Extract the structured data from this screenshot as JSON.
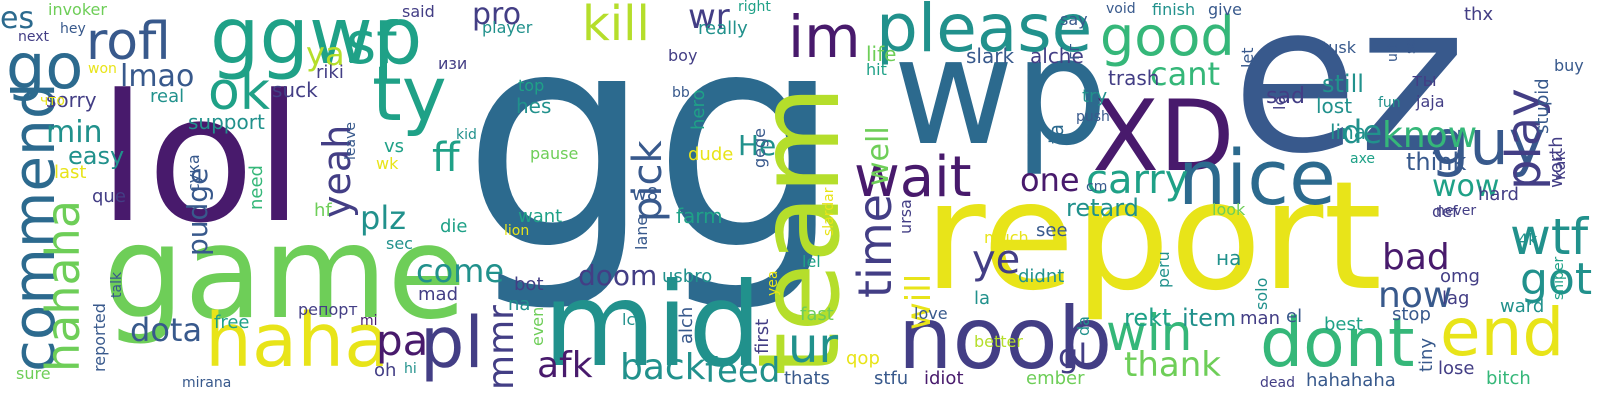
{
  "palette": {
    "purple": "#481a6c",
    "indigo": "#433e85",
    "slate": "#38598c",
    "blue": "#2c6a8e",
    "teal": "#21918c",
    "sea": "#1fa187",
    "green": "#35b779",
    "lime": "#6ece58",
    "yellowgreen": "#b5de2b",
    "yellow": "#e8e419"
  },
  "words": [
    {
      "text": "gg",
      "color": "blue"
    },
    {
      "text": "ez",
      "color": "slate"
    },
    {
      "text": "lol",
      "color": "purple"
    },
    {
      "text": "report",
      "color": "yellow"
    },
    {
      "text": "wp",
      "color": "blue"
    },
    {
      "text": "game",
      "color": "lime"
    },
    {
      "text": "team",
      "color": "yellowgreen"
    },
    {
      "text": "mid",
      "color": "teal"
    },
    {
      "text": "XD",
      "color": "purple"
    },
    {
      "text": "noob",
      "color": "indigo"
    },
    {
      "text": "nice",
      "color": "blue"
    },
    {
      "text": "haha",
      "color": "yellow"
    },
    {
      "text": "please",
      "color": "teal"
    },
    {
      "text": "ggwp",
      "color": "sea"
    },
    {
      "text": "dont",
      "color": "green"
    },
    {
      "text": "end",
      "color": "yellow"
    },
    {
      "text": "commend",
      "color": "blue"
    },
    {
      "text": "ty",
      "color": "sea"
    },
    {
      "text": "good",
      "color": "green"
    },
    {
      "text": "guy",
      "color": "slate"
    },
    {
      "text": "win",
      "color": "green"
    },
    {
      "text": "wait",
      "color": "purple"
    },
    {
      "text": "time",
      "color": "indigo"
    },
    {
      "text": "im",
      "color": "purple"
    },
    {
      "text": "sf",
      "color": "sea"
    },
    {
      "text": "pl",
      "color": "indigo"
    },
    {
      "text": "kill",
      "color": "yellowgreen"
    },
    {
      "text": "go",
      "color": "blue"
    },
    {
      "text": "ok",
      "color": "sea"
    },
    {
      "text": "rofl",
      "color": "slate"
    },
    {
      "text": "hahaha",
      "color": "lime"
    },
    {
      "text": "play",
      "color": "indigo"
    },
    {
      "text": "ur",
      "color": "teal"
    },
    {
      "text": "back",
      "color": "teal"
    },
    {
      "text": "wtf",
      "color": "teal"
    },
    {
      "text": "pick",
      "color": "slate"
    },
    {
      "text": "got",
      "color": "teal"
    },
    {
      "text": "feed",
      "color": "teal"
    },
    {
      "text": "pa",
      "color": "purple"
    },
    {
      "text": "carry",
      "color": "sea"
    },
    {
      "text": "know",
      "color": "green"
    },
    {
      "text": "now",
      "color": "slate"
    },
    {
      "text": "mmr",
      "color": "indigo"
    },
    {
      "text": "yeah",
      "color": "indigo"
    },
    {
      "text": "ye",
      "color": "indigo"
    },
    {
      "text": "ff",
      "color": "sea"
    },
    {
      "text": "bad",
      "color": "purple"
    },
    {
      "text": "well",
      "color": "lime"
    },
    {
      "text": "will",
      "color": "yellow"
    },
    {
      "text": "wow",
      "color": "sea"
    },
    {
      "text": "afk",
      "color": "purple"
    },
    {
      "text": "come",
      "color": "teal"
    },
    {
      "text": "cant",
      "color": "green"
    },
    {
      "text": "gl",
      "color": "indigo"
    },
    {
      "text": "one",
      "color": "purple"
    },
    {
      "text": "dota",
      "color": "slate"
    },
    {
      "text": "plz",
      "color": "teal"
    },
    {
      "text": "pudge",
      "color": "slate"
    },
    {
      "text": "thank",
      "color": "lime"
    },
    {
      "text": "min",
      "color": "teal"
    },
    {
      "text": "lmao",
      "color": "slate"
    },
    {
      "text": "ya",
      "color": "yellowgreen"
    },
    {
      "text": "pro",
      "color": "indigo"
    },
    {
      "text": "wr",
      "color": "indigo"
    },
    {
      "text": "es",
      "color": "blue"
    },
    {
      "text": "de",
      "color": "teal"
    },
    {
      "text": "easy",
      "color": "teal"
    },
    {
      "text": "doom",
      "color": "indigo"
    },
    {
      "text": "Не",
      "color": "teal"
    },
    {
      "text": "retard",
      "color": "teal"
    },
    {
      "text": "rekt",
      "color": "sea"
    },
    {
      "text": "item",
      "color": "teal"
    },
    {
      "text": "still",
      "color": "teal"
    },
    {
      "text": "think",
      "color": "slate"
    },
    {
      "text": "slark",
      "color": "slate"
    },
    {
      "text": "alche",
      "color": "indigo"
    },
    {
      "text": "trash",
      "color": "indigo"
    },
    {
      "text": "lost",
      "color": "teal"
    },
    {
      "text": "lina",
      "color": "teal"
    },
    {
      "text": "sad",
      "color": "indigo"
    },
    {
      "text": "ta",
      "color": "blue"
    },
    {
      "text": "try",
      "color": "teal"
    },
    {
      "text": "life",
      "color": "lime"
    },
    {
      "text": "hit",
      "color": "sea"
    },
    {
      "text": "support",
      "color": "teal"
    },
    {
      "text": "suck",
      "color": "indigo"
    },
    {
      "text": "riki",
      "color": "indigo"
    },
    {
      "text": "sorry",
      "color": "indigo"
    },
    {
      "text": "real",
      "color": "teal"
    },
    {
      "text": "top",
      "color": "sea"
    },
    {
      "text": "hes",
      "color": "teal"
    },
    {
      "text": "hero",
      "color": "sea"
    },
    {
      "text": "bb",
      "color": "slate"
    },
    {
      "text": "pause",
      "color": "lime"
    },
    {
      "text": "dude",
      "color": "yellow"
    },
    {
      "text": "gege",
      "color": "slate"
    },
    {
      "text": "want",
      "color": "sea"
    },
    {
      "text": "farm",
      "color": "sea"
    },
    {
      "text": "lane",
      "color": "slate"
    },
    {
      "text": "w8",
      "color": "slate"
    },
    {
      "text": "usbro",
      "color": "teal"
    },
    {
      "text": "bot",
      "color": "indigo"
    },
    {
      "text": "na",
      "color": "teal"
    },
    {
      "text": "even",
      "color": "lime"
    },
    {
      "text": "alch",
      "color": "slate"
    },
    {
      "text": "lc",
      "color": "teal"
    },
    {
      "text": "first",
      "color": "indigo"
    },
    {
      "text": "thats",
      "color": "slate"
    },
    {
      "text": "qop",
      "color": "yellow"
    },
    {
      "text": "stfu",
      "color": "slate"
    },
    {
      "text": "idiot",
      "color": "purple"
    },
    {
      "text": "ember",
      "color": "lime"
    },
    {
      "text": "fast",
      "color": "lime"
    },
    {
      "text": "lel",
      "color": "sea"
    },
    {
      "text": "la",
      "color": "teal"
    },
    {
      "text": "didnt",
      "color": "teal"
    },
    {
      "text": "see",
      "color": "slate"
    },
    {
      "text": "much",
      "color": "yellow"
    },
    {
      "text": "love",
      "color": "slate"
    },
    {
      "text": "better",
      "color": "yellowgreen"
    },
    {
      "text": "da",
      "color": "teal"
    },
    {
      "text": "peru",
      "color": "teal"
    },
    {
      "text": "на",
      "color": "teal"
    },
    {
      "text": "solo",
      "color": "teal"
    },
    {
      "text": "lo",
      "color": "indigo"
    },
    {
      "text": "man",
      "color": "indigo"
    },
    {
      "text": "el",
      "color": "slate"
    },
    {
      "text": "best",
      "color": "sea"
    },
    {
      "text": "stop",
      "color": "slate"
    },
    {
      "text": "omg",
      "color": "indigo"
    },
    {
      "text": "lag",
      "color": "indigo"
    },
    {
      "text": "tiny",
      "color": "slate"
    },
    {
      "text": "dead",
      "color": "indigo"
    },
    {
      "text": "hahahaha",
      "color": "slate"
    },
    {
      "text": "lose",
      "color": "indigo"
    },
    {
      "text": "bitch",
      "color": "green"
    },
    {
      "text": "ward",
      "color": "teal"
    },
    {
      "text": "4k",
      "color": "teal"
    },
    {
      "text": "hard",
      "color": "indigo"
    },
    {
      "text": "def",
      "color": "indigo"
    },
    {
      "text": "never",
      "color": "indigo"
    },
    {
      "text": "look",
      "color": "lime"
    },
    {
      "text": "sniper",
      "color": "sea"
    },
    {
      "text": "worth",
      "color": "indigo"
    },
    {
      "text": "как",
      "color": "indigo"
    },
    {
      "text": "stupid",
      "color": "slate"
    },
    {
      "text": "jaja",
      "color": "indigo"
    },
    {
      "text": "fun",
      "color": "teal"
    },
    {
      "text": "ты",
      "color": "indigo"
    },
    {
      "text": "buy",
      "color": "slate"
    },
    {
      "text": "thx",
      "color": "indigo"
    },
    {
      "text": "ult",
      "color": "slate"
    },
    {
      "text": "se",
      "color": "slate"
    },
    {
      "text": "tusk",
      "color": "slate"
    },
    {
      "text": "void",
      "color": "slate"
    },
    {
      "text": "finish",
      "color": "teal"
    },
    {
      "text": "give",
      "color": "slate"
    },
    {
      "text": "say",
      "color": "slate"
    },
    {
      "text": "let",
      "color": "slate"
    },
    {
      "text": "гг",
      "color": "slate"
    },
    {
      "text": "push",
      "color": "slate"
    },
    {
      "text": "ursa",
      "color": "indigo"
    },
    {
      "text": "cm",
      "color": "slate"
    },
    {
      "text": "axe",
      "color": "sea"
    },
    {
      "text": "right",
      "color": "sea"
    },
    {
      "text": "player",
      "color": "teal"
    },
    {
      "text": "really",
      "color": "teal"
    },
    {
      "text": "boy",
      "color": "indigo"
    },
    {
      "text": "said",
      "color": "indigo"
    },
    {
      "text": "изи",
      "color": "indigo"
    },
    {
      "text": "invoker",
      "color": "lime"
    },
    {
      "text": "hey",
      "color": "slate"
    },
    {
      "text": "next",
      "color": "indigo"
    },
    {
      "text": "won",
      "color": "yellow"
    },
    {
      "text": "что",
      "color": "yellow"
    },
    {
      "text": "last",
      "color": "yellow"
    },
    {
      "text": "que",
      "color": "indigo"
    },
    {
      "text": "need",
      "color": "green"
    },
    {
      "text": "vs",
      "color": "sea"
    },
    {
      "text": "wk",
      "color": "yellow"
    },
    {
      "text": "leave",
      "color": "slate"
    },
    {
      "text": "hf",
      "color": "lime"
    },
    {
      "text": "сука",
      "color": "slate"
    },
    {
      "text": "sec",
      "color": "teal"
    },
    {
      "text": "die",
      "color": "sea"
    },
    {
      "text": "lion",
      "color": "yellow"
    },
    {
      "text": "kid",
      "color": "teal"
    },
    {
      "text": "mad",
      "color": "indigo"
    },
    {
      "text": "репорт",
      "color": "indigo"
    },
    {
      "text": "mi",
      "color": "purple"
    },
    {
      "text": "free",
      "color": "sea"
    },
    {
      "text": "reported",
      "color": "slate"
    },
    {
      "text": "talk",
      "color": "slate"
    },
    {
      "text": "sure",
      "color": "lime"
    },
    {
      "text": "oh",
      "color": "indigo"
    },
    {
      "text": "hi",
      "color": "teal"
    },
    {
      "text": "mirana",
      "color": "slate"
    },
    {
      "text": "slardar",
      "color": "yellow"
    },
    {
      "text": "yea",
      "color": "yellow"
    }
  ]
}
